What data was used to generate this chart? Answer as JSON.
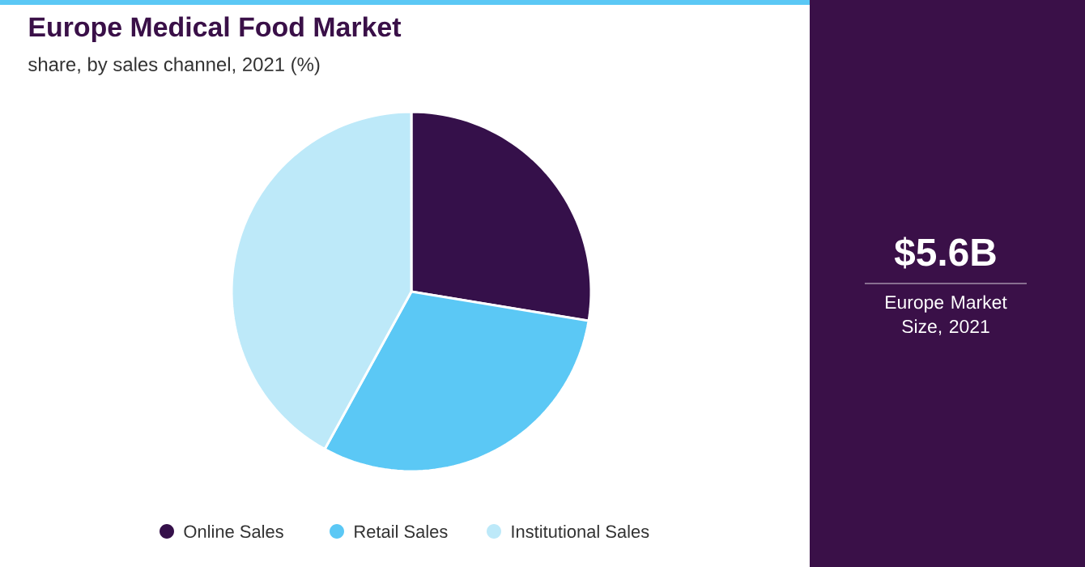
{
  "chart_data": {
    "type": "pie",
    "title": "Europe Medical Food Market",
    "subtitle": "share, by sales channel, 2021 (%)",
    "categories": [
      "Online Sales",
      "Retail Sales",
      "Institutional Sales"
    ],
    "values": [
      27.6,
      30.4,
      42.0
    ],
    "colors": [
      "#35104a",
      "#5bc8f5",
      "#bde9f9"
    ],
    "legend": "bottom",
    "annotations": [
      "$5.6B",
      "Europe Market Size, 2021"
    ]
  }
}
